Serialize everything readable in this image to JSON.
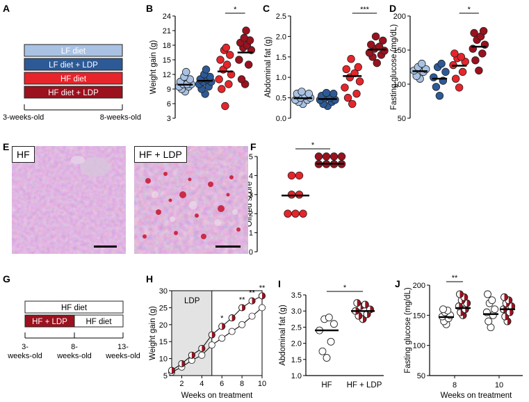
{
  "colors": {
    "lf": "#a9c2e4",
    "lf_ldp": "#2d5a97",
    "hf": "#e8242b",
    "hf_ldp": "#9b111e",
    "half_fill": "#9b111e",
    "shade": "#e3e3e3"
  },
  "panel_letters": [
    "A",
    "B",
    "C",
    "D",
    "E",
    "F",
    "G",
    "H",
    "I",
    "J"
  ],
  "panel_a": {
    "boxes": [
      "LF diet",
      "LF diet + LDP",
      "HF diet",
      "HF diet + LDP"
    ],
    "timeline_start": "3-weeks-old",
    "timeline_end": "8-weeks-old"
  },
  "panel_e": {
    "label_left": "HF",
    "label_right": "HF + LDP"
  },
  "panel_g": {
    "top_box": "HF diet",
    "bottom_left_box": "HF + LDP",
    "bottom_right_box": "HF diet",
    "t1_line1": "3-",
    "t1_line2": "weeks-old",
    "t2_line1": "8-",
    "t2_line2": "weeks-old",
    "t3_line1": "13-",
    "t3_line2": "weeks-old"
  },
  "chart_data": [
    {
      "id": "B",
      "type": "scatter",
      "ylabel": "Weight gain (g)",
      "ylim": [
        3,
        24
      ],
      "yticks": [
        3,
        6,
        9,
        12,
        15,
        18,
        21,
        24
      ],
      "groups": [
        "LF diet",
        "LF diet + LDP",
        "HF diet",
        "HF diet + LDP"
      ],
      "points": [
        [
          8.5,
          9,
          9.5,
          9.5,
          10,
          10,
          10,
          10.5,
          11,
          11.5,
          12.5
        ],
        [
          8,
          9,
          9.5,
          10,
          10.5,
          10.5,
          11,
          11,
          11.5,
          12,
          13
        ],
        [
          5.5,
          9,
          10,
          11,
          12,
          13,
          14,
          15,
          16,
          17,
          17.5
        ],
        [
          10,
          11,
          14,
          15,
          17,
          17.5,
          18,
          18.5,
          19,
          19.5,
          21
        ]
      ],
      "means": [
        9.9,
        10.7,
        12.6,
        16.5
      ],
      "significance": [
        {
          "pair": [
            2,
            3
          ],
          "label": "*"
        }
      ]
    },
    {
      "id": "C",
      "type": "scatter",
      "ylabel": "Abdominal fat (g)",
      "ylim": [
        0,
        2.5
      ],
      "yticks": [
        0,
        0.5,
        1.0,
        1.5,
        2.0,
        2.5
      ],
      "ytick_labels": [
        "0.0",
        "0.5",
        "1.0",
        "1.5",
        "2.0",
        "2.5"
      ],
      "groups": [
        "LF diet",
        "LF diet + LDP",
        "HF diet",
        "HF diet + LDP"
      ],
      "points": [
        [
          0.35,
          0.4,
          0.45,
          0.45,
          0.5,
          0.5,
          0.55,
          0.6,
          0.6,
          0.65
        ],
        [
          0.3,
          0.35,
          0.4,
          0.45,
          0.45,
          0.5,
          0.5,
          0.55,
          0.6,
          0.62
        ],
        [
          0.35,
          0.5,
          0.6,
          0.75,
          0.9,
          1.0,
          1.1,
          1.2,
          1.25,
          1.45
        ],
        [
          1.35,
          1.5,
          1.55,
          1.6,
          1.65,
          1.7,
          1.75,
          1.8,
          1.9,
          2.0
        ]
      ],
      "means": [
        0.49,
        0.47,
        1.03,
        1.68
      ],
      "significance": [
        {
          "pair": [
            2,
            3
          ],
          "label": "***"
        }
      ]
    },
    {
      "id": "D",
      "type": "scatter",
      "ylabel": "Fasting glucose (mg/dL)",
      "ylim": [
        50,
        200
      ],
      "yticks": [
        50,
        100,
        150,
        200
      ],
      "groups": [
        "LF diet",
        "LF diet + LDP",
        "HF diet",
        "HF diet + LDP"
      ],
      "points": [
        [
          108,
          112,
          118,
          120,
          122,
          125,
          130
        ],
        [
          83,
          96,
          105,
          110,
          118,
          125,
          130
        ],
        [
          95,
          108,
          118,
          128,
          133,
          138,
          140,
          145
        ],
        [
          120,
          135,
          145,
          152,
          158,
          165,
          170,
          175,
          178
        ]
      ],
      "means": [
        119,
        108,
        127,
        155
      ],
      "significance": [
        {
          "pair": [
            2,
            3
          ],
          "label": "*"
        }
      ]
    },
    {
      "id": "F",
      "type": "scatter",
      "ylabel": "Oil red score",
      "ylim": [
        0,
        5
      ],
      "yticks": [
        0,
        1,
        2,
        3,
        4,
        5
      ],
      "groups": [
        "HF",
        "HF + LDP"
      ],
      "points": [
        [
          2,
          2,
          2,
          3,
          3,
          4,
          4
        ],
        [
          4.6,
          4.6,
          4.6,
          4.6,
          5,
          5,
          5,
          5
        ]
      ],
      "means": [
        2.95,
        4.62
      ],
      "significance": [
        {
          "pair": [
            0,
            1
          ],
          "label": "*"
        }
      ]
    },
    {
      "id": "H",
      "type": "line",
      "title": "LDP",
      "xlabel": "Weeks on treatment",
      "ylabel": "Weight gain (g)",
      "xlim": [
        1,
        10
      ],
      "ylim": [
        5,
        30
      ],
      "xticks": [
        2,
        4,
        6,
        8,
        10
      ],
      "yticks": [
        5,
        10,
        15,
        20,
        25,
        30
      ],
      "shaded_range": [
        1,
        5
      ],
      "x": [
        1,
        2,
        3,
        4,
        5,
        6,
        7,
        8,
        9,
        10
      ],
      "series": [
        {
          "name": "HF",
          "values": [
            6,
            7.5,
            9.5,
            11,
            14,
            16,
            18,
            20,
            22.5,
            25
          ]
        },
        {
          "name": "HF + LDP",
          "values": [
            6.5,
            8.5,
            11,
            13,
            17,
            19.5,
            22,
            25,
            27,
            28.5
          ]
        }
      ],
      "annotations": [
        {
          "x": 6,
          "label": "*"
        },
        {
          "x": 8,
          "label": "**"
        },
        {
          "x": 9,
          "label": "**"
        },
        {
          "x": 10,
          "label": "**"
        }
      ]
    },
    {
      "id": "I",
      "type": "scatter",
      "ylabel": "Abdominal fat (g)",
      "ylim": [
        1.0,
        3.5
      ],
      "yticks": [
        1.0,
        1.5,
        2.0,
        2.5,
        3.0,
        3.5
      ],
      "ytick_labels": [
        "1.0",
        "1.5",
        "2.0",
        "2.5",
        "3.0",
        "3.5"
      ],
      "groups": [
        "HF",
        "HF + LDP"
      ],
      "points": [
        [
          1.55,
          1.75,
          2.05,
          2.4,
          2.6,
          2.75,
          2.8
        ],
        [
          2.75,
          2.85,
          2.9,
          3.0,
          3.05,
          3.15,
          3.2,
          3.25
        ]
      ],
      "means": [
        2.4,
        3.0
      ],
      "significance": [
        {
          "pair": [
            0,
            1
          ],
          "label": "*"
        }
      ]
    },
    {
      "id": "J",
      "type": "scatter",
      "xlabel": "Weeks on treatment",
      "ylabel": "Fasting glucose (mg/dL)",
      "ylim": [
        50,
        200
      ],
      "yticks": [
        50,
        100,
        150,
        200
      ],
      "categories": [
        "8",
        "10"
      ],
      "groups": [
        "HF",
        "HF + LDP"
      ],
      "points": {
        "8": [
          [
            135,
            140,
            145,
            148,
            150,
            155,
            158,
            160
          ],
          [
            150,
            155,
            160,
            165,
            170,
            175,
            180,
            185
          ]
        ],
        "10": [
          [
            130,
            140,
            150,
            155,
            160,
            170,
            175,
            185
          ],
          [
            140,
            148,
            155,
            160,
            165,
            170,
            175,
            180
          ]
        ]
      },
      "means": {
        "8": [
          147,
          162
        ],
        "10": [
          152,
          160
        ]
      },
      "significance": [
        {
          "category": "8",
          "label": "**"
        }
      ]
    }
  ]
}
